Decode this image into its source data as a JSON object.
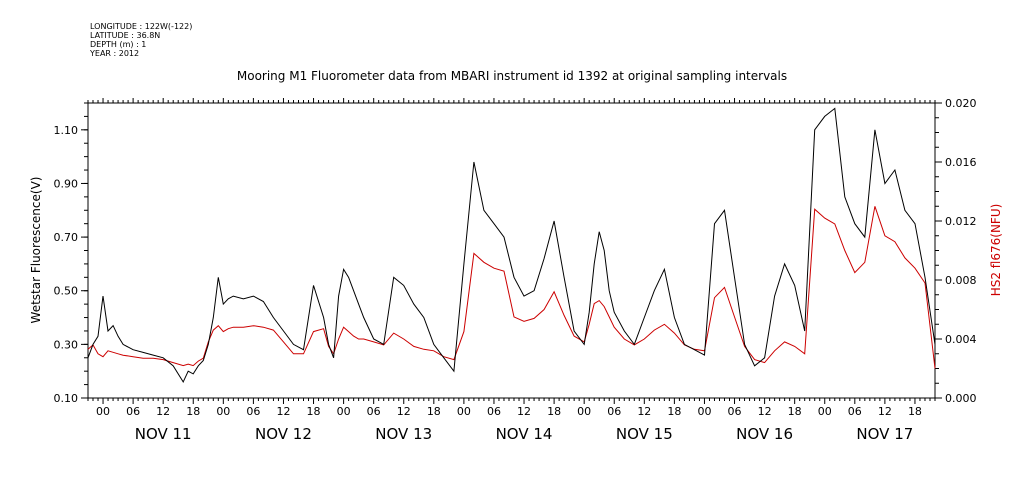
{
  "meta": [
    "LONGITUDE : 122W(-122)",
    "LATITUDE : 36.8N",
    "DEPTH (m) : 1",
    "YEAR : 2012"
  ],
  "chart_data": {
    "type": "line",
    "title": "Mooring M1 Fluorometer data from MBARI instrument id 1392 at original sampling intervals",
    "xlabel": "",
    "x_hour_ticks": [
      "00",
      "06",
      "12",
      "18",
      "00",
      "06",
      "12",
      "18",
      "00",
      "06",
      "12",
      "18",
      "00",
      "06",
      "12",
      "18",
      "00",
      "06",
      "12",
      "18",
      "00",
      "06",
      "12",
      "18",
      "00",
      "06",
      "12",
      "18"
    ],
    "x_day_labels": [
      "NOV 11",
      "NOV 12",
      "NOV 13",
      "NOV 14",
      "NOV 15",
      "NOV 16",
      "NOV 17"
    ],
    "xlim_hours_from_nov11_00": [
      -3,
      166
    ],
    "y_left": {
      "label": "Wetstar Fluorescence(V)",
      "ylim": [
        0.1,
        1.2
      ],
      "ticks": [
        "0.10",
        "0.30",
        "0.50",
        "0.70",
        "0.90",
        "1.10"
      ],
      "color": "#000000"
    },
    "y_right": {
      "label": "HS2 fl676(NFU)",
      "ylim": [
        0.0,
        0.02
      ],
      "ticks": [
        "0.000",
        "0.004",
        "0.008",
        "0.012",
        "0.016",
        "0.020"
      ],
      "color": "#cc0000"
    },
    "series": [
      {
        "name": "",
        "axis": "left",
        "color": "#000000",
        "x": [
          -3,
          -2,
          -1,
          0,
          1,
          2,
          3,
          4,
          6,
          8,
          10,
          12,
          14,
          16,
          17,
          18,
          19,
          20,
          21,
          22,
          23,
          24,
          25,
          26,
          28,
          30,
          32,
          34,
          36,
          38,
          40,
          42,
          44,
          45,
          46,
          47,
          48,
          49,
          50,
          51,
          52,
          54,
          56,
          58,
          60,
          62,
          64,
          66,
          68,
          70,
          72,
          74,
          76,
          78,
          80,
          82,
          84,
          86,
          88,
          90,
          92,
          94,
          96,
          97,
          98,
          99,
          100,
          101,
          102,
          104,
          106,
          108,
          110,
          112,
          114,
          116,
          118,
          120,
          122,
          124,
          126,
          128,
          130,
          132,
          134,
          136,
          138,
          140,
          142,
          144,
          146,
          148,
          150,
          152,
          154,
          156,
          158,
          160,
          162,
          164,
          166
        ],
        "y": [
          0.25,
          0.3,
          0.33,
          0.48,
          0.35,
          0.37,
          0.33,
          0.3,
          0.28,
          0.27,
          0.26,
          0.25,
          0.22,
          0.16,
          0.2,
          0.19,
          0.22,
          0.24,
          0.3,
          0.4,
          0.55,
          0.45,
          0.47,
          0.48,
          0.47,
          0.48,
          0.46,
          0.4,
          0.35,
          0.3,
          0.28,
          0.52,
          0.4,
          0.3,
          0.25,
          0.48,
          0.58,
          0.55,
          0.5,
          0.45,
          0.4,
          0.32,
          0.3,
          0.55,
          0.52,
          0.45,
          0.4,
          0.3,
          0.25,
          0.2,
          0.6,
          0.98,
          0.8,
          0.75,
          0.7,
          0.55,
          0.48,
          0.5,
          0.62,
          0.76,
          0.55,
          0.35,
          0.3,
          0.42,
          0.6,
          0.72,
          0.65,
          0.5,
          0.42,
          0.35,
          0.3,
          0.4,
          0.5,
          0.58,
          0.4,
          0.3,
          0.28,
          0.26,
          0.75,
          0.8,
          0.55,
          0.3,
          0.22,
          0.25,
          0.48,
          0.6,
          0.52,
          0.35,
          1.1,
          1.15,
          1.18,
          0.85,
          0.75,
          0.7,
          1.1,
          0.9,
          0.95,
          0.8,
          0.75,
          0.55,
          0.3
        ]
      },
      {
        "name": "",
        "axis": "right",
        "color": "#cc0000",
        "x": [
          -3,
          -2,
          -1,
          0,
          1,
          2,
          3,
          4,
          6,
          8,
          10,
          12,
          14,
          16,
          17,
          18,
          19,
          20,
          21,
          22,
          23,
          24,
          25,
          26,
          28,
          30,
          32,
          34,
          36,
          38,
          40,
          42,
          44,
          45,
          46,
          47,
          48,
          49,
          50,
          51,
          52,
          54,
          56,
          58,
          60,
          62,
          64,
          66,
          68,
          70,
          72,
          74,
          76,
          78,
          80,
          82,
          84,
          86,
          88,
          90,
          92,
          94,
          96,
          97,
          98,
          99,
          100,
          101,
          102,
          104,
          106,
          108,
          110,
          112,
          114,
          116,
          118,
          120,
          122,
          124,
          126,
          128,
          130,
          132,
          134,
          136,
          138,
          140,
          142,
          144,
          146,
          148,
          150,
          152,
          154,
          156,
          158,
          160,
          162,
          164,
          166
        ],
        "y": [
          0.0033,
          0.0036,
          0.003,
          0.0028,
          0.0032,
          0.0031,
          0.003,
          0.0029,
          0.0028,
          0.0027,
          0.0027,
          0.0026,
          0.0024,
          0.0022,
          0.0023,
          0.0022,
          0.0025,
          0.0027,
          0.0038,
          0.0046,
          0.0049,
          0.0045,
          0.0047,
          0.0048,
          0.0048,
          0.0049,
          0.0048,
          0.0046,
          0.0038,
          0.003,
          0.003,
          0.0045,
          0.0047,
          0.0035,
          0.003,
          0.004,
          0.0048,
          0.0045,
          0.0042,
          0.004,
          0.004,
          0.0038,
          0.0036,
          0.0044,
          0.004,
          0.0035,
          0.0033,
          0.0032,
          0.0028,
          0.0026,
          0.0045,
          0.0098,
          0.0092,
          0.0088,
          0.0086,
          0.0055,
          0.0052,
          0.0054,
          0.006,
          0.0072,
          0.0056,
          0.0042,
          0.0038,
          0.005,
          0.0064,
          0.0066,
          0.0062,
          0.0055,
          0.0048,
          0.004,
          0.0036,
          0.004,
          0.0046,
          0.005,
          0.0044,
          0.0036,
          0.0033,
          0.0032,
          0.0068,
          0.0075,
          0.0055,
          0.0035,
          0.0026,
          0.0024,
          0.0032,
          0.0038,
          0.0035,
          0.003,
          0.0128,
          0.0122,
          0.0118,
          0.01,
          0.0085,
          0.0092,
          0.013,
          0.011,
          0.0106,
          0.0095,
          0.0088,
          0.0078,
          0.002
        ]
      }
    ]
  }
}
